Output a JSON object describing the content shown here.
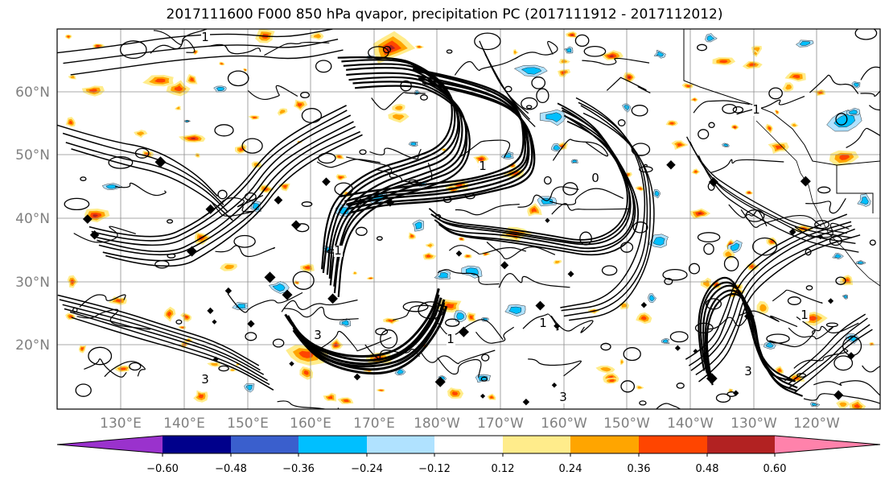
{
  "title": "2017111600 F000 850 hPa qvapor, precipitation PC (2017111912 - 2017112012)",
  "map": {
    "lat_labels": [
      "60°N",
      "50°N",
      "40°N",
      "30°N",
      "20°N"
    ],
    "lon_labels": [
      "130°E",
      "140°E",
      "150°E",
      "160°E",
      "170°E",
      "180°W",
      "170°W",
      "160°W",
      "150°W",
      "140°W",
      "130°W",
      "120°W"
    ],
    "contour_labels": [
      "1",
      "1",
      "1",
      "0",
      "1",
      "3",
      "1",
      "3",
      "3",
      "1",
      "3",
      "1"
    ]
  },
  "colorbar": {
    "tick_labels": [
      "−0.60",
      "−0.48",
      "−0.36",
      "−0.24",
      "−0.12",
      "0.12",
      "0.24",
      "0.36",
      "0.48",
      "0.60"
    ],
    "colors": [
      "#9a32cd",
      "#00008b",
      "#3a5fcd",
      "#00bfff",
      "#b0e2ff",
      "#ffffff",
      "#ffec8b",
      "#ffa500",
      "#ff4500",
      "#b22222",
      "#ff82ab"
    ]
  },
  "fill_colors": {
    "neg_light": "#b0e2ff",
    "neg_mid": "#00bfff",
    "pos_light": "#ffec8b",
    "pos_mid": "#ffa500",
    "pos_strong": "#ff4500",
    "pos_dark": "#b22222"
  }
}
